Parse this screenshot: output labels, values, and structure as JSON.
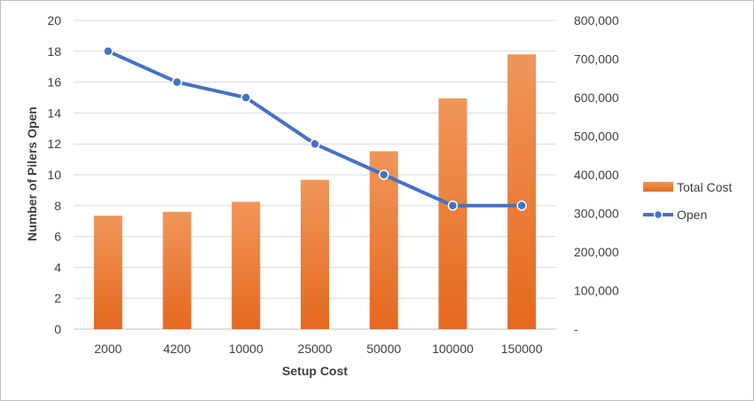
{
  "chart_data": {
    "type": "bar",
    "xlabel": "Setup Cost",
    "ylabel_left": "Number of Pilers Open",
    "ylabel_right": "",
    "categories": [
      "2000",
      "4200",
      "10000",
      "25000",
      "50000",
      "100000",
      "150000"
    ],
    "left_axis": {
      "min": 0,
      "max": 20,
      "step": 2,
      "ticks": [
        "0",
        "2",
        "4",
        "6",
        "8",
        "10",
        "12",
        "14",
        "16",
        "18",
        "20"
      ]
    },
    "right_axis": {
      "min": 0,
      "max": 800000,
      "step": 100000,
      "ticks": [
        "-",
        "100,000",
        "200,000",
        "300,000",
        "400,000",
        "500,000",
        "600,000",
        "700,000",
        "800,000"
      ]
    },
    "series": [
      {
        "name": "Total Cost",
        "kind": "bar",
        "axis": "right",
        "color": "#ed7d31",
        "values": [
          294000,
          304000,
          330000,
          387000,
          461000,
          598000,
          712000
        ]
      },
      {
        "name": "Open",
        "kind": "line",
        "axis": "left",
        "color": "#4472c4",
        "values": [
          18,
          16,
          15,
          12,
          10,
          8,
          8
        ]
      }
    ],
    "gridlines": true,
    "legend_position": "right"
  }
}
